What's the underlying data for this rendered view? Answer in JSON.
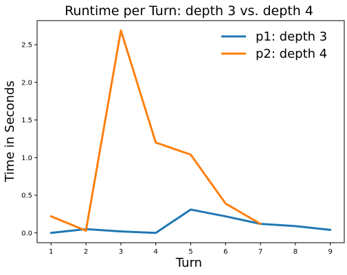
{
  "chart_data": {
    "type": "line",
    "title": "Runtime per Turn: depth 3 vs. depth 4",
    "xlabel": "Turn",
    "ylabel": "Time in Seconds",
    "x_ticks": [
      1,
      2,
      3,
      4,
      5,
      6,
      7,
      8,
      9
    ],
    "y_ticks": [
      "0.0",
      "0.5",
      "1.0",
      "1.5",
      "2.0",
      "2.5"
    ],
    "xlim": [
      0.6,
      9.4
    ],
    "ylim": [
      -0.13,
      2.82
    ],
    "grid": false,
    "legend_position": "top-right",
    "series": [
      {
        "name": "p1: depth 3",
        "color": "#1f77b4",
        "x": [
          1,
          2,
          3,
          4,
          5,
          6,
          7,
          8,
          9
        ],
        "values": [
          0.0,
          0.05,
          0.02,
          0.0,
          0.31,
          0.22,
          0.12,
          0.09,
          0.04
        ]
      },
      {
        "name": "p2: depth 4",
        "color": "#ff7f0e",
        "x": [
          1,
          2,
          3,
          4,
          5,
          6,
          7
        ],
        "values": [
          0.22,
          0.03,
          2.69,
          1.2,
          1.04,
          0.39,
          0.12
        ]
      }
    ]
  }
}
